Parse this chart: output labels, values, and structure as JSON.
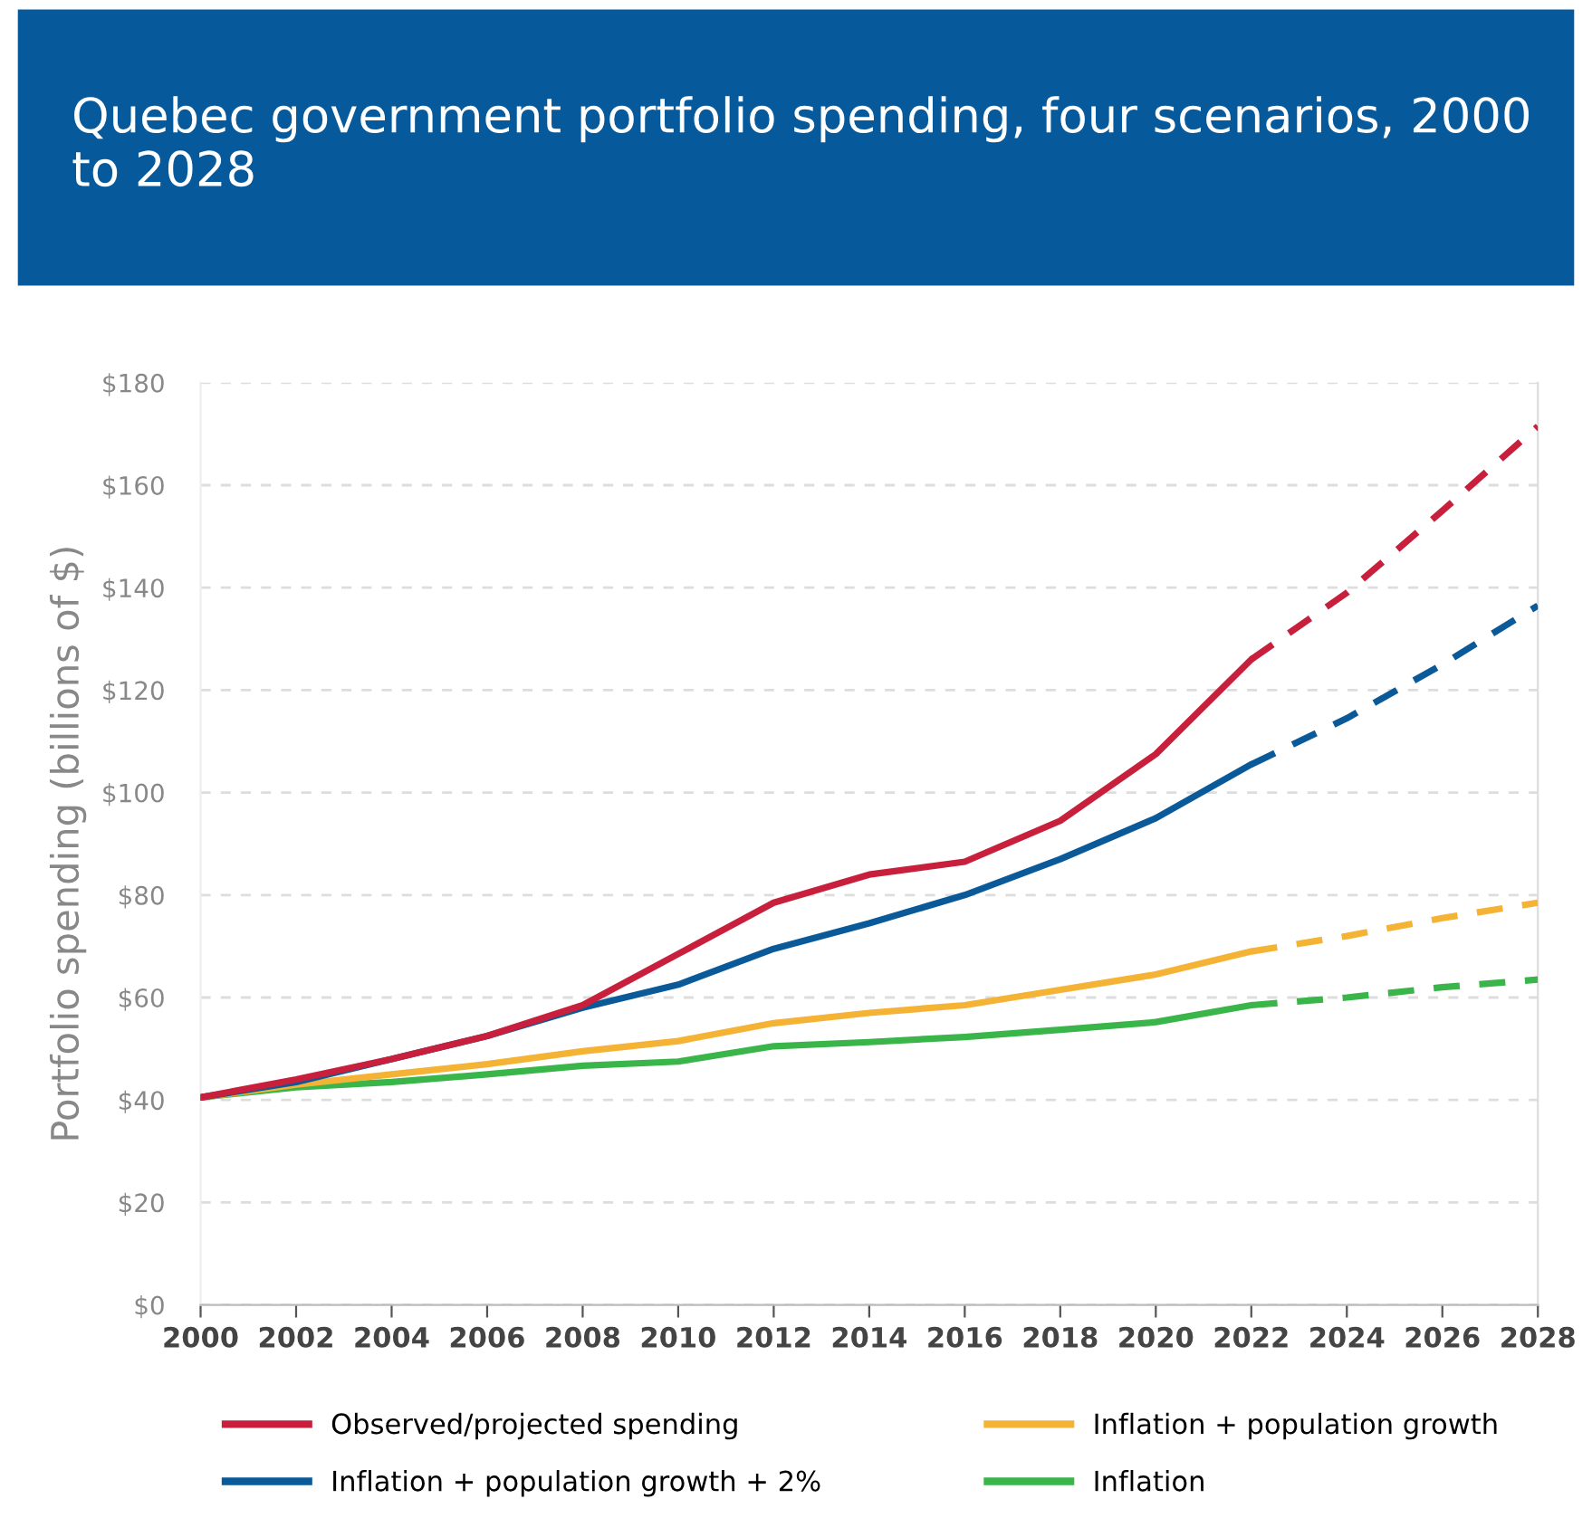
{
  "chart_data": {
    "type": "line",
    "title": "Quebec government portfolio spending, four scenarios, 2000 to 2028",
    "ylabel": "Portfolio spending (billions of $)",
    "series": [
      {
        "name": "Observed/projected spending",
        "color": "#c8203c",
        "line_style": "solid",
        "x": [
          2000,
          2002,
          2004,
          2006,
          2008,
          2010,
          2012,
          2014,
          2016,
          2018,
          2020,
          2022
        ],
        "values": [
          40.5,
          44,
          48,
          52.5,
          58.5,
          68.5,
          78.5,
          84,
          86.5,
          94.5,
          107.5,
          126
        ]
      },
      {
        "name": "Inflation + population growth + 2%",
        "color": "#0a5a99",
        "line_style": "solid",
        "x": [
          2000,
          2002,
          2004,
          2006,
          2008,
          2010,
          2012,
          2014,
          2016,
          2018,
          2020,
          2022
        ],
        "values": [
          40.5,
          43.5,
          48,
          52.5,
          58,
          62.5,
          69.5,
          74.5,
          80,
          87,
          95,
          105.5
        ]
      },
      {
        "name": "Inflation + population growth",
        "color": "#f5b335",
        "line_style": "solid",
        "x": [
          2000,
          2002,
          2004,
          2006,
          2008,
          2010,
          2012,
          2014,
          2016,
          2018,
          2020,
          2022
        ],
        "values": [
          40.5,
          43,
          45,
          47,
          49.5,
          51.5,
          55,
          57,
          58.5,
          61.5,
          64.5,
          69
        ]
      },
      {
        "name": "Inflation",
        "color": "#3ab54a",
        "line_style": "solid",
        "x": [
          2000,
          2002,
          2004,
          2006,
          2008,
          2010,
          2012,
          2014,
          2016,
          2018,
          2020,
          2022
        ],
        "values": [
          40.5,
          42.5,
          43.5,
          45,
          46.7,
          47.5,
          50.5,
          51.3,
          52.3,
          53.7,
          55.2,
          58.5
        ]
      },
      {
        "color": "#c8203c",
        "line_style": "dashed",
        "x": [
          2022,
          2024,
          2026,
          2028
        ],
        "values": [
          126,
          139,
          155,
          171.5
        ]
      },
      {
        "color": "#0a5a99",
        "line_style": "dashed",
        "x": [
          2022,
          2024,
          2026,
          2028
        ],
        "values": [
          105.5,
          114.5,
          125,
          136.5
        ]
      },
      {
        "color": "#f5b335",
        "line_style": "dashed",
        "x": [
          2022,
          2024,
          2026,
          2028
        ],
        "values": [
          69,
          72,
          75.5,
          78.5
        ]
      },
      {
        "color": "#3ab54a",
        "line_style": "dashed",
        "x": [
          2022,
          2024,
          2026,
          2028
        ],
        "values": [
          58.5,
          60,
          62,
          63.5
        ]
      }
    ],
    "xlim": [
      2000,
      2028
    ],
    "xticks": [
      2000,
      2002,
      2004,
      2006,
      2008,
      2010,
      2012,
      2014,
      2016,
      2018,
      2020,
      2022,
      2024,
      2026,
      2028
    ],
    "ylim": [
      0,
      180
    ],
    "yticks": [
      {
        "value": 0,
        "label": "$0"
      },
      {
        "value": 20,
        "label": "$20"
      },
      {
        "value": 40,
        "label": "$40"
      },
      {
        "value": 60,
        "label": "$60"
      },
      {
        "value": 80,
        "label": "$80"
      },
      {
        "value": 100,
        "label": "$100"
      },
      {
        "value": 120,
        "label": "$120"
      },
      {
        "value": 140,
        "label": "$140"
      },
      {
        "value": 160,
        "label": "$160"
      },
      {
        "value": 180,
        "label": "$180"
      }
    ],
    "grid": "y",
    "legend": "bottom",
    "marker": "none"
  }
}
